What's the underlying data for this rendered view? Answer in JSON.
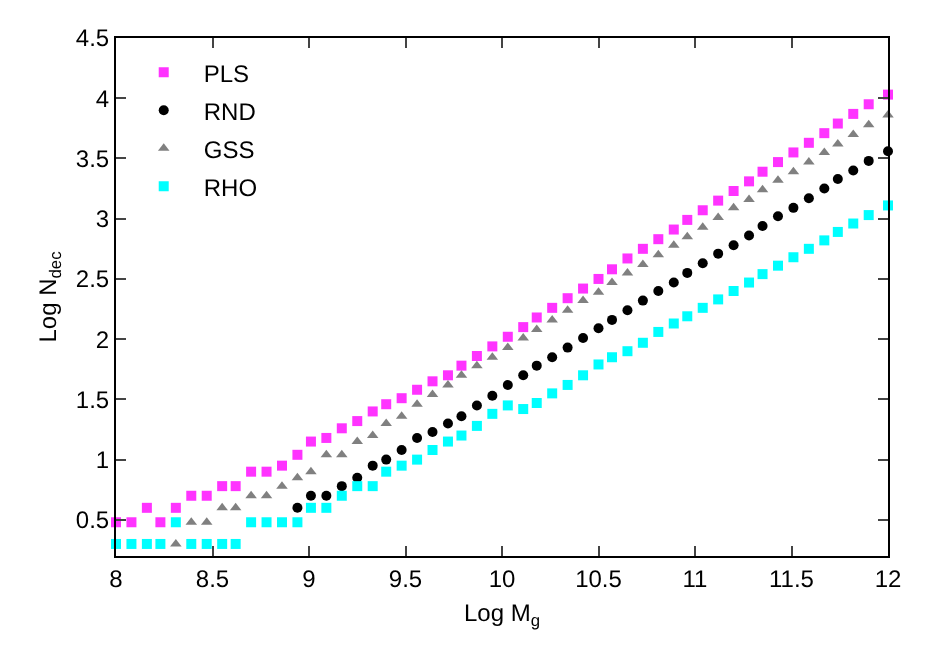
{
  "chart_data": {
    "type": "scatter",
    "xlabel": "Log M$_{g}$",
    "ylabel": "Log N$_{dec}$",
    "x": [
      8.0,
      8.08,
      8.16,
      8.23,
      8.31,
      8.39,
      8.47,
      8.55,
      8.62,
      8.7,
      8.78,
      8.86,
      8.94,
      9.01,
      9.09,
      9.17,
      9.25,
      9.33,
      9.4,
      9.48,
      9.56,
      9.64,
      9.72,
      9.79,
      9.87,
      9.95,
      10.03,
      10.11,
      10.18,
      10.26,
      10.34,
      10.42,
      10.5,
      10.57,
      10.65,
      10.73,
      10.81,
      10.89,
      10.96,
      11.04,
      11.12,
      11.2,
      11.28,
      11.35,
      11.43,
      11.51,
      11.59,
      11.67,
      11.74,
      11.82,
      11.9,
      12.0
    ],
    "series": [
      {
        "name": "PLS",
        "color": "#ff33ff",
        "marker": "square",
        "values": [
          0.48,
          0.48,
          0.6,
          0.48,
          0.6,
          0.7,
          0.7,
          0.78,
          0.78,
          0.9,
          0.9,
          0.95,
          1.04,
          1.15,
          1.18,
          1.26,
          1.32,
          1.4,
          1.46,
          1.51,
          1.58,
          1.65,
          1.7,
          1.78,
          1.86,
          1.94,
          2.02,
          2.1,
          2.18,
          2.26,
          2.34,
          2.42,
          2.5,
          2.58,
          2.67,
          2.75,
          2.83,
          2.91,
          2.99,
          3.07,
          3.15,
          3.23,
          3.31,
          3.39,
          3.47,
          3.55,
          3.63,
          3.71,
          3.79,
          3.87,
          3.95,
          4.03
        ]
      },
      {
        "name": "RND",
        "color": "#000000",
        "marker": "circle",
        "values": [
          null,
          null,
          null,
          null,
          null,
          null,
          null,
          null,
          null,
          null,
          null,
          null,
          0.6,
          0.7,
          0.7,
          0.78,
          0.85,
          0.95,
          1.0,
          1.08,
          1.18,
          1.23,
          1.3,
          1.36,
          1.45,
          1.53,
          1.62,
          1.7,
          1.78,
          1.85,
          1.93,
          2.01,
          2.09,
          2.16,
          2.24,
          2.32,
          2.4,
          2.47,
          2.55,
          2.63,
          2.71,
          2.78,
          2.86,
          2.94,
          3.02,
          3.09,
          3.17,
          3.25,
          3.33,
          3.4,
          3.48,
          3.56
        ]
      },
      {
        "name": "GSS",
        "color": "#808080",
        "marker": "triangle",
        "values": [
          null,
          null,
          null,
          null,
          0.3,
          0.48,
          0.48,
          0.6,
          0.6,
          0.7,
          0.7,
          0.78,
          0.85,
          0.9,
          1.04,
          1.04,
          1.15,
          1.2,
          1.3,
          1.36,
          1.46,
          1.54,
          1.62,
          1.7,
          1.78,
          1.85,
          1.93,
          2.01,
          2.08,
          2.16,
          2.24,
          2.32,
          2.39,
          2.47,
          2.55,
          2.62,
          2.7,
          2.78,
          2.85,
          2.93,
          3.01,
          3.09,
          3.16,
          3.24,
          3.32,
          3.39,
          3.47,
          3.55,
          3.62,
          3.7,
          3.78,
          3.86
        ]
      },
      {
        "name": "RHO",
        "color": "#00ffff",
        "marker": "square",
        "values": [
          0.3,
          0.3,
          0.3,
          0.3,
          0.48,
          0.3,
          0.3,
          0.3,
          0.3,
          0.48,
          0.48,
          0.48,
          0.48,
          0.6,
          0.6,
          0.7,
          0.78,
          0.78,
          0.9,
          0.95,
          1.0,
          1.08,
          1.15,
          1.2,
          1.28,
          1.38,
          1.45,
          1.42,
          1.47,
          1.55,
          1.62,
          1.7,
          1.79,
          1.85,
          1.9,
          1.97,
          2.06,
          2.13,
          2.19,
          2.26,
          2.33,
          2.4,
          2.47,
          2.54,
          2.61,
          2.68,
          2.75,
          2.82,
          2.89,
          2.96,
          3.03,
          3.11
        ]
      }
    ],
    "xlim": [
      8,
      12
    ],
    "xticks": [
      8,
      8.5,
      9,
      9.5,
      10,
      10.5,
      11,
      11.5,
      12
    ],
    "ylim": [
      0.2,
      4.5
    ],
    "yticks": [
      0.5,
      1,
      1.5,
      2,
      2.5,
      3,
      3.5,
      4,
      4.5
    ],
    "grid": false,
    "legend": "top left"
  }
}
